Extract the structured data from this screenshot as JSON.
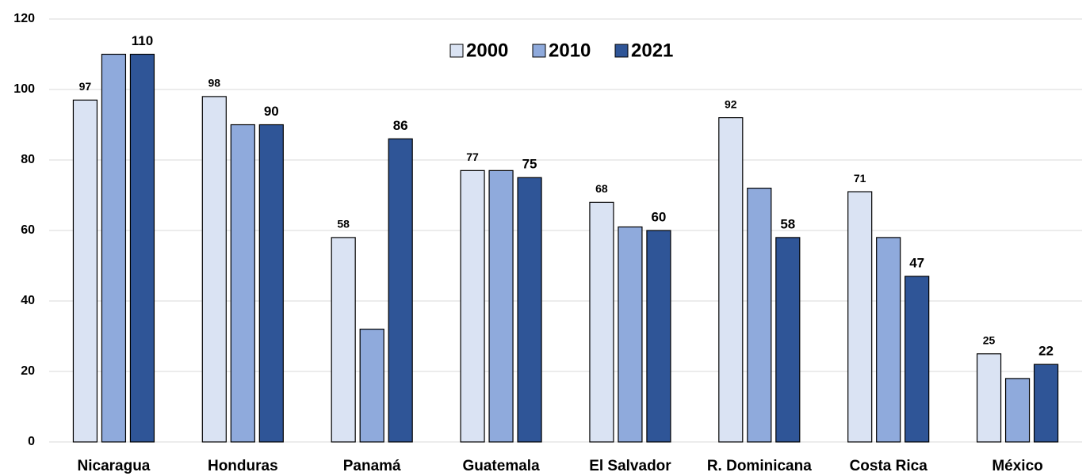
{
  "chart_data": {
    "type": "bar",
    "categories": [
      "Nicaragua",
      "Honduras",
      "Panamá",
      "Guatemala",
      "El Salvador",
      "R. Dominicana",
      "Costa Rica",
      "México"
    ],
    "series": [
      {
        "name": "2000",
        "color": "#dae3f3",
        "labels": true,
        "values": [
          97,
          98,
          58,
          77,
          68,
          92,
          71,
          25
        ]
      },
      {
        "name": "2010",
        "color": "#8faadc",
        "labels": false,
        "values": [
          110,
          90,
          32,
          77,
          61,
          72,
          58,
          18
        ]
      },
      {
        "name": "2021",
        "color": "#2f5597",
        "labels": true,
        "values": [
          110,
          90,
          86,
          75,
          60,
          58,
          47,
          22
        ]
      }
    ],
    "ylim": [
      0,
      120
    ],
    "yticks": [
      0,
      20,
      40,
      60,
      80,
      100,
      120
    ],
    "grid": true,
    "legend": "top"
  }
}
